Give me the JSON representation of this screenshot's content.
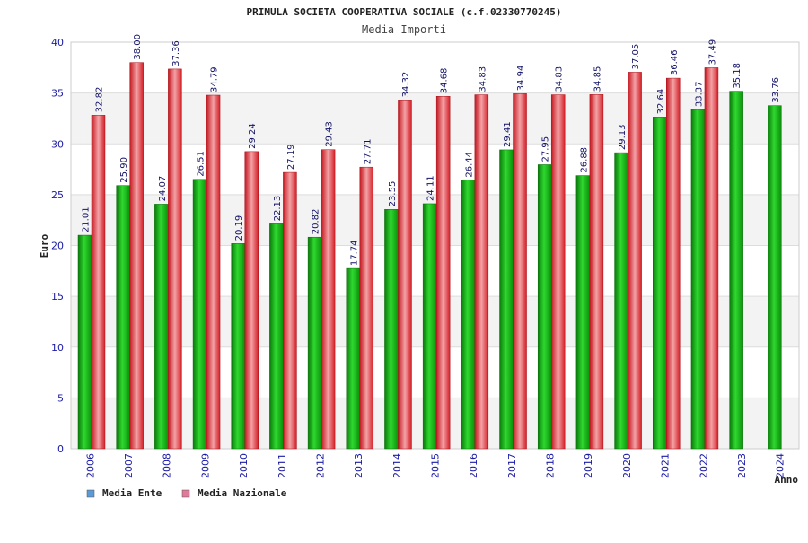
{
  "chart_data": {
    "type": "bar",
    "title": "PRIMULA SOCIETA COOPERATIVA SOCIALE (c.f.02330770245)",
    "subtitle": "Media Importi",
    "xlabel": "Anno",
    "ylabel": "Euro",
    "ylim": [
      0,
      40
    ],
    "yticks": [
      0,
      5,
      10,
      15,
      20,
      25,
      30,
      35,
      40
    ],
    "grid": true,
    "legend_position": "bottom-left",
    "categories": [
      "2006",
      "2007",
      "2008",
      "2009",
      "2010",
      "2011",
      "2012",
      "2013",
      "2014",
      "2015",
      "2016",
      "2017",
      "2018",
      "2019",
      "2020",
      "2021",
      "2022",
      "2023",
      "2024"
    ],
    "series": [
      {
        "name": "Media Ente",
        "legend_color": "#5b9bd5",
        "bar_color": "#11a611",
        "values": [
          21.01,
          25.9,
          24.07,
          26.51,
          20.19,
          22.13,
          20.82,
          17.74,
          23.55,
          24.11,
          26.44,
          29.41,
          27.95,
          26.88,
          29.13,
          32.64,
          33.37,
          35.18,
          33.76
        ],
        "labels": [
          "21.01",
          "25.90",
          "24.07",
          "26.51",
          "20.19",
          "22.13",
          "20.82",
          "17.74",
          "23.55",
          "24.11",
          "26.44",
          "29.41",
          "27.95",
          "26.88",
          "29.13",
          "32.64",
          "33.37",
          "35.18",
          "33.76"
        ]
      },
      {
        "name": "Media Nazionale",
        "legend_color": "#e07a9a",
        "bar_color": "#e8232b",
        "values": [
          32.82,
          38.0,
          37.36,
          34.79,
          29.24,
          27.19,
          29.43,
          27.71,
          34.32,
          34.68,
          34.83,
          34.94,
          34.83,
          34.85,
          37.05,
          36.46,
          37.49,
          null,
          null
        ],
        "labels": [
          "32.82",
          "38.00",
          "37.36",
          "34.79",
          "29.24",
          "27.19",
          "29.43",
          "27.71",
          "34.32",
          "34.68",
          "34.83",
          "34.94",
          "34.83",
          "34.85",
          "37.05",
          "36.46",
          "37.49",
          null,
          null
        ]
      }
    ]
  }
}
